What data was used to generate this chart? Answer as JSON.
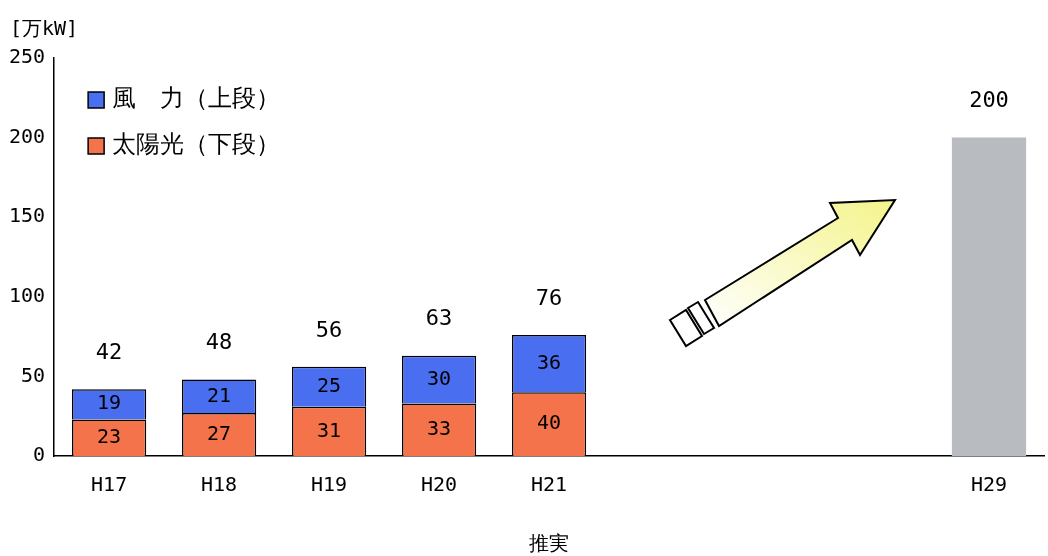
{
  "chart_data": {
    "type": "bar",
    "stacked": true,
    "ylabel": "[万kW]",
    "categories": [
      "H17",
      "H18",
      "H19",
      "H20",
      "H21",
      null,
      null,
      null,
      "H29"
    ],
    "series": [
      {
        "name": "太陽光（下段）",
        "color": "#f4734a",
        "values": [
          23,
          27,
          31,
          33,
          40,
          null,
          null,
          null,
          null
        ],
        "value_labels": [
          "23",
          "27",
          "31",
          "33",
          "40",
          null,
          null,
          null,
          null
        ]
      },
      {
        "name": "風　力（上段）",
        "color": "#4a6ef0",
        "values": [
          19,
          21,
          25,
          30,
          36,
          null,
          null,
          null,
          null
        ],
        "value_labels": [
          "19",
          "21",
          "25",
          "30",
          "36",
          null,
          null,
          null,
          null
        ]
      },
      {
        "color": "#b8bcc0",
        "values": [
          null,
          null,
          null,
          null,
          null,
          null,
          null,
          null,
          200
        ]
      }
    ],
    "totals": [
      "42",
      "48",
      "56",
      "63",
      "76",
      null,
      null,
      null,
      "200"
    ],
    "ylim": [
      0,
      250
    ],
    "yticks": [
      0,
      50,
      100,
      150,
      200,
      250
    ],
    "grid": false,
    "legend": "top left",
    "annotations": [
      "推実"
    ]
  }
}
